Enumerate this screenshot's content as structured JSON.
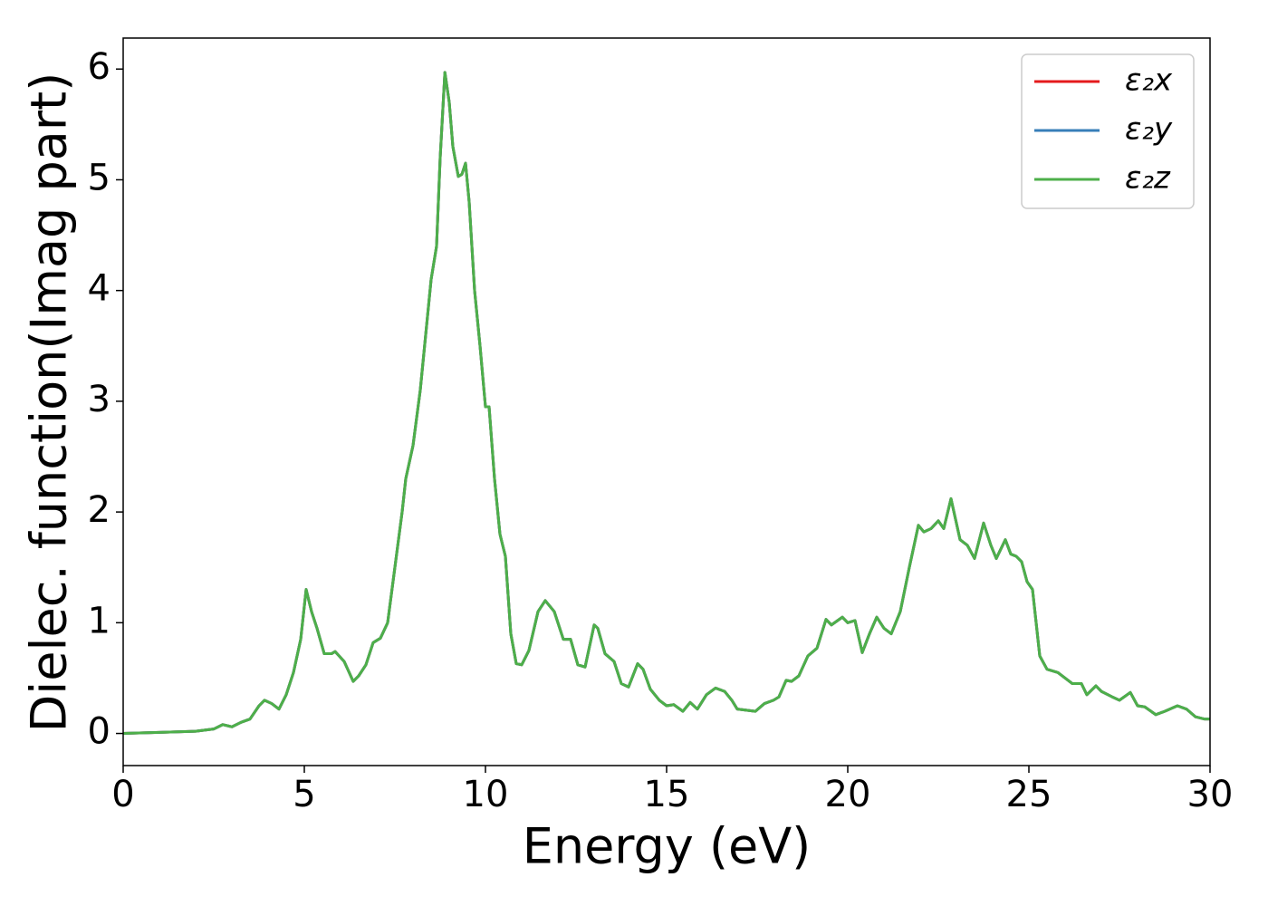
{
  "chart_data": {
    "type": "line",
    "xlabel": "Energy (eV)",
    "ylabel": "Dielec. function(Imag part)",
    "xlim": [
      0,
      30
    ],
    "xticks": [
      0,
      5,
      10,
      15,
      20,
      25,
      30
    ],
    "ylim": [
      -0.29,
      6.28
    ],
    "yticks": [
      0,
      1,
      2,
      3,
      4,
      5,
      6
    ],
    "legend": "upper right",
    "x": [
      0,
      1,
      2,
      2.5,
      2.75,
      3,
      3.25,
      3.5,
      3.75,
      3.9,
      4.1,
      4.3,
      4.5,
      4.7,
      4.9,
      5.05,
      5.2,
      5.35,
      5.55,
      5.75,
      5.85,
      6.1,
      6.35,
      6.5,
      6.7,
      6.9,
      7.1,
      7.3,
      7.5,
      7.7,
      7.8,
      8,
      8.2,
      8.35,
      8.5,
      8.65,
      8.75,
      8.88,
      9,
      9.1,
      9.25,
      9.35,
      9.45,
      9.55,
      9.7,
      9.85,
      10,
      10.1,
      10.25,
      10.4,
      10.55,
      10.7,
      10.85,
      11,
      11.2,
      11.45,
      11.65,
      11.9,
      12.15,
      12.35,
      12.55,
      12.75,
      13,
      13.1,
      13.3,
      13.55,
      13.75,
      13.95,
      14.2,
      14.35,
      14.55,
      14.8,
      15,
      15.2,
      15.45,
      15.65,
      15.85,
      16.1,
      16.35,
      16.6,
      16.8,
      16.95,
      17.2,
      17.45,
      17.7,
      17.95,
      18.1,
      18.3,
      18.45,
      18.65,
      18.9,
      19.15,
      19.4,
      19.55,
      19.85,
      20,
      20.2,
      20.4,
      20.6,
      20.8,
      21,
      21.2,
      21.45,
      21.7,
      21.95,
      22.1,
      22.3,
      22.5,
      22.65,
      22.85,
      23.1,
      23.3,
      23.5,
      23.75,
      23.95,
      24.1,
      24.35,
      24.5,
      24.65,
      24.8,
      24.95,
      25.1,
      25.3,
      25.5,
      25.8,
      26,
      26.2,
      26.45,
      26.6,
      26.85,
      27,
      27.3,
      27.5,
      27.8,
      28,
      28.2,
      28.5,
      28.75,
      29.1,
      29.35,
      29.6,
      29.85,
      30
    ],
    "series": [
      {
        "name": "ε₂x",
        "color": "#e41a1c",
        "values": [
          0,
          0.01,
          0.02,
          0.04,
          0.08,
          0.06,
          0.1,
          0.13,
          0.25,
          0.3,
          0.27,
          0.22,
          0.35,
          0.55,
          0.85,
          1.3,
          1.1,
          0.95,
          0.72,
          0.72,
          0.74,
          0.65,
          0.47,
          0.52,
          0.62,
          0.82,
          0.86,
          1.0,
          1.5,
          2.0,
          2.3,
          2.6,
          3.1,
          3.6,
          4.1,
          4.4,
          5.2,
          5.97,
          5.7,
          5.3,
          5.03,
          5.05,
          5.15,
          4.8,
          4.0,
          3.5,
          2.95,
          2.95,
          2.3,
          1.8,
          1.6,
          0.9,
          0.63,
          0.62,
          0.75,
          1.1,
          1.2,
          1.1,
          0.85,
          0.85,
          0.62,
          0.6,
          0.98,
          0.95,
          0.72,
          0.65,
          0.45,
          0.42,
          0.63,
          0.58,
          0.4,
          0.3,
          0.25,
          0.26,
          0.2,
          0.28,
          0.22,
          0.35,
          0.41,
          0.38,
          0.3,
          0.22,
          0.21,
          0.2,
          0.27,
          0.3,
          0.33,
          0.48,
          0.47,
          0.52,
          0.7,
          0.77,
          1.03,
          0.98,
          1.05,
          1.0,
          1.02,
          0.73,
          0.9,
          1.05,
          0.95,
          0.9,
          1.1,
          1.5,
          1.88,
          1.82,
          1.85,
          1.92,
          1.85,
          2.12,
          1.75,
          1.7,
          1.58,
          1.9,
          1.7,
          1.58,
          1.75,
          1.62,
          1.6,
          1.55,
          1.37,
          1.3,
          0.7,
          0.58,
          0.55,
          0.5,
          0.45,
          0.45,
          0.35,
          0.43,
          0.38,
          0.33,
          0.3,
          0.37,
          0.25,
          0.24,
          0.17,
          0.2,
          0.25,
          0.22,
          0.15,
          0.13,
          0.13
        ]
      },
      {
        "name": "ε₂y",
        "color": "#377eb8",
        "values": [
          0,
          0.01,
          0.02,
          0.04,
          0.08,
          0.06,
          0.1,
          0.13,
          0.25,
          0.3,
          0.27,
          0.22,
          0.35,
          0.55,
          0.85,
          1.3,
          1.1,
          0.95,
          0.72,
          0.72,
          0.74,
          0.65,
          0.47,
          0.52,
          0.62,
          0.82,
          0.86,
          1.0,
          1.5,
          2.0,
          2.3,
          2.6,
          3.1,
          3.6,
          4.1,
          4.4,
          5.2,
          5.97,
          5.7,
          5.3,
          5.03,
          5.05,
          5.15,
          4.8,
          4.0,
          3.5,
          2.95,
          2.95,
          2.3,
          1.8,
          1.6,
          0.9,
          0.63,
          0.62,
          0.75,
          1.1,
          1.2,
          1.1,
          0.85,
          0.85,
          0.62,
          0.6,
          0.98,
          0.95,
          0.72,
          0.65,
          0.45,
          0.42,
          0.63,
          0.58,
          0.4,
          0.3,
          0.25,
          0.26,
          0.2,
          0.28,
          0.22,
          0.35,
          0.41,
          0.38,
          0.3,
          0.22,
          0.21,
          0.2,
          0.27,
          0.3,
          0.33,
          0.48,
          0.47,
          0.52,
          0.7,
          0.77,
          1.03,
          0.98,
          1.05,
          1.0,
          1.02,
          0.73,
          0.9,
          1.05,
          0.95,
          0.9,
          1.1,
          1.5,
          1.88,
          1.82,
          1.85,
          1.92,
          1.85,
          2.12,
          1.75,
          1.7,
          1.58,
          1.9,
          1.7,
          1.58,
          1.75,
          1.62,
          1.6,
          1.55,
          1.37,
          1.3,
          0.7,
          0.58,
          0.55,
          0.5,
          0.45,
          0.45,
          0.35,
          0.43,
          0.38,
          0.33,
          0.3,
          0.37,
          0.25,
          0.24,
          0.17,
          0.2,
          0.25,
          0.22,
          0.15,
          0.13,
          0.13
        ]
      },
      {
        "name": "ε₂z",
        "color": "#4daf4a",
        "values": [
          0,
          0.01,
          0.02,
          0.04,
          0.08,
          0.06,
          0.1,
          0.13,
          0.25,
          0.3,
          0.27,
          0.22,
          0.35,
          0.55,
          0.85,
          1.3,
          1.1,
          0.95,
          0.72,
          0.72,
          0.74,
          0.65,
          0.47,
          0.52,
          0.62,
          0.82,
          0.86,
          1.0,
          1.5,
          2.0,
          2.3,
          2.6,
          3.1,
          3.6,
          4.1,
          4.4,
          5.2,
          5.97,
          5.7,
          5.3,
          5.03,
          5.05,
          5.15,
          4.8,
          4.0,
          3.5,
          2.95,
          2.95,
          2.3,
          1.8,
          1.6,
          0.9,
          0.63,
          0.62,
          0.75,
          1.1,
          1.2,
          1.1,
          0.85,
          0.85,
          0.62,
          0.6,
          0.98,
          0.95,
          0.72,
          0.65,
          0.45,
          0.42,
          0.63,
          0.58,
          0.4,
          0.3,
          0.25,
          0.26,
          0.2,
          0.28,
          0.22,
          0.35,
          0.41,
          0.38,
          0.3,
          0.22,
          0.21,
          0.2,
          0.27,
          0.3,
          0.33,
          0.48,
          0.47,
          0.52,
          0.7,
          0.77,
          1.03,
          0.98,
          1.05,
          1.0,
          1.02,
          0.73,
          0.9,
          1.05,
          0.95,
          0.9,
          1.1,
          1.5,
          1.88,
          1.82,
          1.85,
          1.92,
          1.85,
          2.12,
          1.75,
          1.7,
          1.58,
          1.9,
          1.7,
          1.58,
          1.75,
          1.62,
          1.6,
          1.55,
          1.37,
          1.3,
          0.7,
          0.58,
          0.55,
          0.5,
          0.45,
          0.45,
          0.35,
          0.43,
          0.38,
          0.33,
          0.3,
          0.37,
          0.25,
          0.24,
          0.17,
          0.2,
          0.25,
          0.22,
          0.15,
          0.13,
          0.13
        ]
      }
    ]
  }
}
